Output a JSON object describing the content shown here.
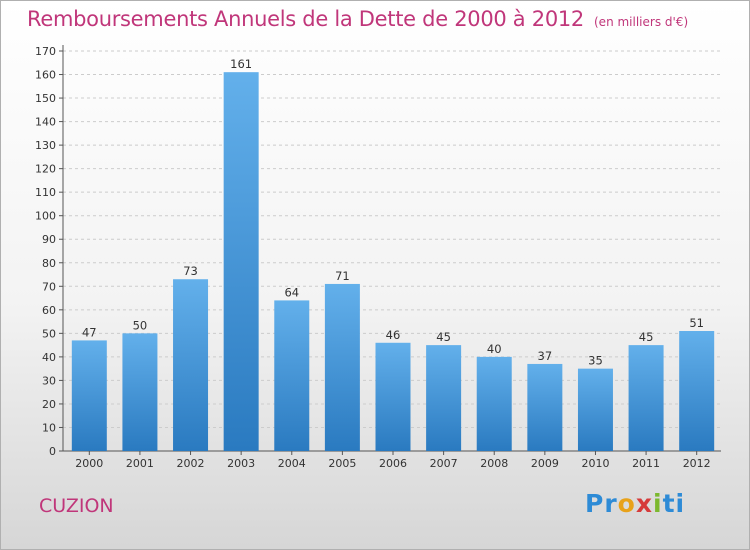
{
  "header": {
    "title": "Remboursements Annuels de la Dette de 2000 à 2012",
    "unit": "(en milliers d'€)"
  },
  "footer": {
    "commune": "CUZION",
    "logo": {
      "p1": "Pr",
      "p2": "o",
      "p3": "x",
      "p4": "i",
      "p5": "ti"
    }
  },
  "colors": {
    "bar_top": "#63b0eb",
    "bar_bottom": "#2a7ac0",
    "title": "#c0367a",
    "grid": "#cccccc"
  },
  "chart_data": {
    "type": "bar",
    "categories": [
      "2000",
      "2001",
      "2002",
      "2003",
      "2004",
      "2005",
      "2006",
      "2007",
      "2008",
      "2009",
      "2010",
      "2011",
      "2012"
    ],
    "values": [
      47,
      50,
      73,
      161,
      64,
      71,
      46,
      45,
      40,
      37,
      35,
      45,
      51
    ],
    "title": "Remboursements Annuels de la Dette de 2000 à 2012",
    "xlabel": "",
    "ylabel": "",
    "ylim": [
      0,
      170
    ],
    "yticks": [
      0,
      10,
      20,
      30,
      40,
      50,
      60,
      70,
      80,
      90,
      100,
      110,
      120,
      130,
      140,
      150,
      160,
      170
    ],
    "grid": "horizontal-dashed",
    "data_labels": true
  }
}
